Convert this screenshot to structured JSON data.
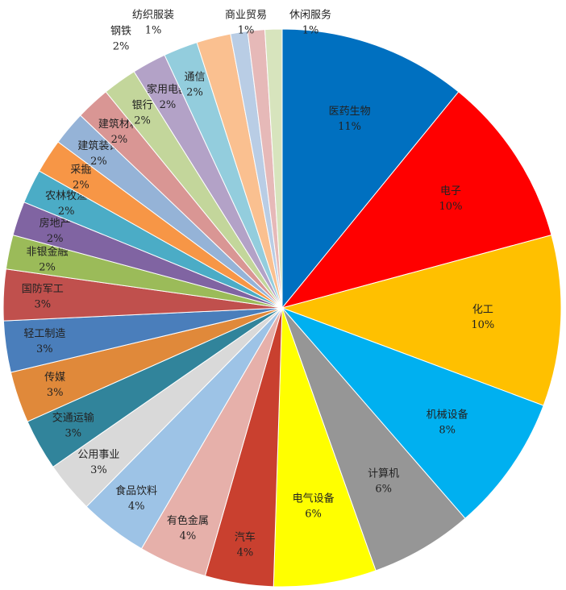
{
  "chart_data": {
    "type": "pie",
    "categories": [
      "医药生物",
      "电子",
      "化工",
      "机械设备",
      "计算机",
      "电气设备",
      "汽车",
      "有色金属",
      "食品饮料",
      "公用事业",
      "交通运输",
      "传媒",
      "轻工制造",
      "国防军工",
      "非银金融",
      "房地产",
      "农林牧渔",
      "采掘",
      "建筑装饰",
      "建筑材料",
      "银行",
      "家用电器",
      "通信",
      "钢铁",
      "纺织服装",
      "商业贸易",
      "休闲服务"
    ],
    "values": [
      11,
      10,
      10,
      8,
      6,
      6,
      4,
      4,
      4,
      3,
      3,
      3,
      3,
      3,
      2,
      2,
      2,
      2,
      2,
      2,
      2,
      2,
      2,
      2,
      1,
      1,
      1
    ],
    "value_labels": [
      "11%",
      "10%",
      "10%",
      "8%",
      "6%",
      "6%",
      "4%",
      "4%",
      "4%",
      "3%",
      "3%",
      "3%",
      "3%",
      "3%",
      "2%",
      "2%",
      "2%",
      "2%",
      "2%",
      "2%",
      "2%",
      "2%",
      "2%",
      "2%",
      "1%",
      "1%",
      "1%"
    ],
    "colors": [
      "#0070c0",
      "#ff0000",
      "#ffc000",
      "#00b0f0",
      "#969696",
      "#ffff00",
      "#c9402f",
      "#e6b0aa",
      "#9dc3e6",
      "#d9d9d9",
      "#31849b",
      "#e0893a",
      "#4a7ebb",
      "#c0504d",
      "#9bbb59",
      "#8064a2",
      "#4bacc6",
      "#f79646",
      "#95b3d7",
      "#d99694",
      "#c3d69b",
      "#b3a2c7",
      "#93cddd",
      "#fac090",
      "#b9cde5",
      "#e6b9b8",
      "#d7e4bd"
    ]
  }
}
